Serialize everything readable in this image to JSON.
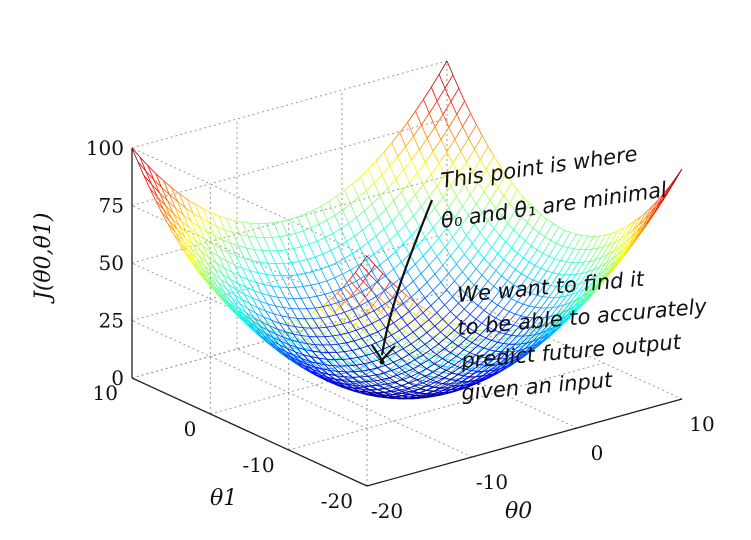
{
  "chart_data": {
    "type": "surface",
    "function": "J(theta0, theta1)",
    "xlabel": "θ0",
    "ylabel": "θ1",
    "zlabel": "J(θ0,θ1)",
    "xlim": [
      -20,
      10
    ],
    "ylim": [
      -20,
      10
    ],
    "zlim": [
      0,
      100
    ],
    "xticks": [
      "-20",
      "-10",
      "0",
      "10"
    ],
    "yticks": [
      "-20",
      "-10",
      "0",
      "10"
    ],
    "zticks": [
      "0",
      "25",
      "50",
      "75",
      "100"
    ],
    "minimum": {
      "theta0": -5,
      "theta1": -5,
      "J": 0
    },
    "colormap": "jet",
    "grid": true
  },
  "annotations": {
    "note1_line1": "This point is where",
    "note1_line2": "θ₀ and θ₁ are minimal",
    "note2_line1": "We want to find it",
    "note2_line2": "to be able to accurately",
    "note2_line3": "predict future output",
    "note2_line4": "given an input"
  }
}
